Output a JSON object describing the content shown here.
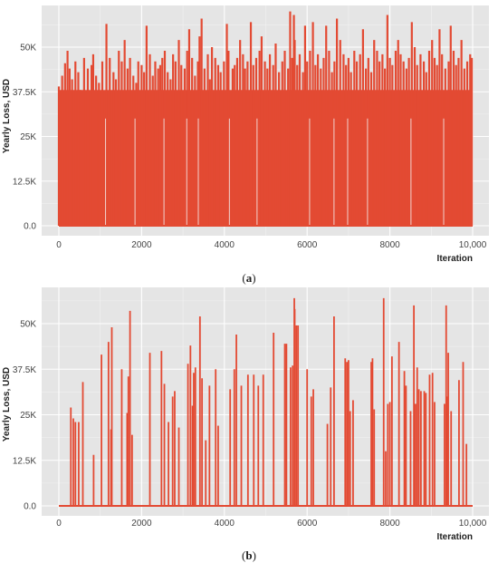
{
  "chart_data": [
    {
      "type": "bar",
      "panel_label": "a",
      "xlabel": "Iteration",
      "ylabel": "Yearly Loss, USD",
      "xlim": [
        0,
        10000
      ],
      "ylim": [
        0,
        62500
      ],
      "xticks": [
        0,
        2000,
        4000,
        6000,
        8000,
        10000
      ],
      "xtick_labels": [
        "0",
        "2000",
        "4000",
        "6000",
        "8000",
        "10,000"
      ],
      "yticks": [
        0,
        12500,
        25000,
        37500,
        50000
      ],
      "ytick_labels": [
        "0.0",
        "12.5K",
        "25K",
        "37.5K",
        "50K"
      ],
      "grid": true,
      "background": "#e5e5e5",
      "bar_color": "#e34a33",
      "description": "Dense spikes at nearly every iteration; most losses between 12.5K and 50K, maximum about 60K",
      "x": [
        0,
        80,
        150,
        210,
        260,
        320,
        400,
        470,
        520,
        610,
        700,
        790,
        830,
        900,
        970,
        1050,
        1150,
        1230,
        1320,
        1380,
        1450,
        1520,
        1590,
        1660,
        1720,
        1800,
        1870,
        1920,
        2000,
        2060,
        2120,
        2200,
        2270,
        2330,
        2400,
        2450,
        2500,
        2560,
        2630,
        2700,
        2760,
        2820,
        2900,
        2960,
        3040,
        3100,
        3150,
        3220,
        3290,
        3360,
        3400,
        3450,
        3520,
        3600,
        3650,
        3700,
        3780,
        3850,
        3910,
        3990,
        4060,
        4100,
        4200,
        4250,
        4310,
        4380,
        4450,
        4500,
        4560,
        4640,
        4700,
        4770,
        4850,
        4900,
        4980,
        5040,
        5100,
        5180,
        5240,
        5320,
        5400,
        5460,
        5540,
        5590,
        5640,
        5680,
        5700,
        5760,
        5820,
        5900,
        5950,
        6000,
        6070,
        6140,
        6200,
        6260,
        6330,
        6400,
        6460,
        6530,
        6600,
        6660,
        6720,
        6800,
        6880,
        6940,
        7000,
        7060,
        7140,
        7200,
        7280,
        7350,
        7420,
        7480,
        7550,
        7620,
        7690,
        7750,
        7820,
        7880,
        7940,
        8000,
        8060,
        8140,
        8200,
        8260,
        8330,
        8400,
        8460,
        8530,
        8600,
        8660,
        8740,
        8820,
        8880,
        8950,
        9020,
        9080,
        9140,
        9200,
        9260,
        9340,
        9420,
        9470,
        9540,
        9600,
        9660,
        9730,
        9800,
        9870,
        9940,
        9980
      ],
      "values": [
        39000,
        42000,
        45500,
        49000,
        44000,
        41000,
        46000,
        43000,
        38000,
        47000,
        44000,
        45000,
        48000,
        42000,
        40000,
        46000,
        56500,
        47000,
        43000,
        41000,
        49000,
        46000,
        52000,
        44000,
        47000,
        42000,
        40000,
        46000,
        45000,
        43000,
        56000,
        48000,
        42000,
        46000,
        44000,
        45000,
        47000,
        49000,
        43000,
        41000,
        48000,
        46000,
        52000,
        45000,
        44000,
        49000,
        55000,
        47000,
        42000,
        46000,
        53000,
        58000,
        44000,
        48000,
        41000,
        50000,
        47000,
        45000,
        43000,
        46000,
        56500,
        49000,
        44000,
        45000,
        47000,
        52000,
        48000,
        44000,
        46000,
        57000,
        45000,
        47000,
        49000,
        53000,
        46000,
        44000,
        48000,
        45000,
        51000,
        43000,
        46000,
        49000,
        44000,
        60000,
        47000,
        59000,
        52000,
        45000,
        48000,
        43000,
        56000,
        46000,
        49000,
        57000,
        45000,
        48000,
        44000,
        47000,
        56000,
        49000,
        43000,
        46000,
        58000,
        52000,
        48000,
        45000,
        47000,
        43000,
        49000,
        46000,
        48000,
        55000,
        44000,
        47000,
        43000,
        52000,
        49000,
        46000,
        48000,
        44000,
        59000,
        47000,
        45000,
        49000,
        52000,
        48000,
        46000,
        44000,
        47000,
        57000,
        50000,
        45000,
        48000,
        46000,
        43000,
        49000,
        52000,
        47000,
        45000,
        55000,
        48000,
        44000,
        46000,
        56000,
        49000,
        45000,
        47000,
        52000,
        44000,
        46000,
        48000,
        47000
      ]
    },
    {
      "type": "bar",
      "panel_label": "b",
      "xlabel": "Iteration",
      "ylabel": "Yearly Loss, USD",
      "xlim": [
        0,
        10000
      ],
      "ylim": [
        0,
        62500
      ],
      "xticks": [
        0,
        2000,
        4000,
        6000,
        8000,
        10000
      ],
      "xtick_labels": [
        "0",
        "2000",
        "4000",
        "6000",
        "8000",
        "10,000"
      ],
      "yticks": [
        0,
        12500,
        25000,
        37500,
        50000
      ],
      "ytick_labels": [
        "0.0",
        "12.5K",
        "25K",
        "37.5K",
        "50K"
      ],
      "grid": true,
      "background": "#e5e5e5",
      "bar_color": "#e34a33",
      "x": [
        290,
        350,
        400,
        480,
        580,
        840,
        1030,
        1200,
        1260,
        1280,
        1520,
        1650,
        1680,
        1720,
        1770,
        2200,
        2480,
        2550,
        2650,
        2750,
        2800,
        2900,
        3120,
        3180,
        3230,
        3260,
        3300,
        3410,
        3460,
        3550,
        3640,
        3790,
        3850,
        4140,
        4240,
        4290,
        4410,
        4570,
        4710,
        4820,
        4940,
        5190,
        5460,
        5500,
        5600,
        5650,
        5690,
        5700,
        5740,
        5780,
        6000,
        6100,
        6150,
        6490,
        6570,
        6650,
        6920,
        6960,
        7000,
        7040,
        7110,
        7550,
        7580,
        7620,
        7850,
        7900,
        7950,
        8000,
        8050,
        8220,
        8350,
        8390,
        8500,
        8580,
        8620,
        8660,
        8700,
        8750,
        8830,
        8870,
        8960,
        9030,
        9080,
        9320,
        9360,
        9380,
        9410,
        9480,
        9670,
        9770,
        9850
      ],
      "values": [
        27000,
        24000,
        23000,
        23000,
        34000,
        14000,
        41500,
        45000,
        21000,
        49000,
        37500,
        25500,
        35500,
        53500,
        19500,
        42000,
        42500,
        33500,
        23000,
        30000,
        31500,
        21500,
        39000,
        44000,
        27500,
        36500,
        38000,
        52000,
        35000,
        18000,
        33000,
        37500,
        22000,
        32000,
        37500,
        47000,
        33000,
        36000,
        36000,
        33000,
        36000,
        47500,
        44500,
        44500,
        38000,
        38500,
        57000,
        54000,
        49500,
        49500,
        37500,
        30000,
        32000,
        22500,
        32500,
        52000,
        40500,
        39500,
        40000,
        26000,
        29000,
        39500,
        40500,
        26500,
        57000,
        15000,
        28000,
        28500,
        41000,
        45000,
        37000,
        33000,
        26000,
        55000,
        28000,
        38000,
        32000,
        31500,
        31500,
        31000,
        36000,
        36500,
        28500,
        28000,
        55000,
        30000,
        42000,
        26000,
        34500,
        39500,
        17000
      ]
    }
  ],
  "captions": [
    "(a)",
    "(b)"
  ]
}
